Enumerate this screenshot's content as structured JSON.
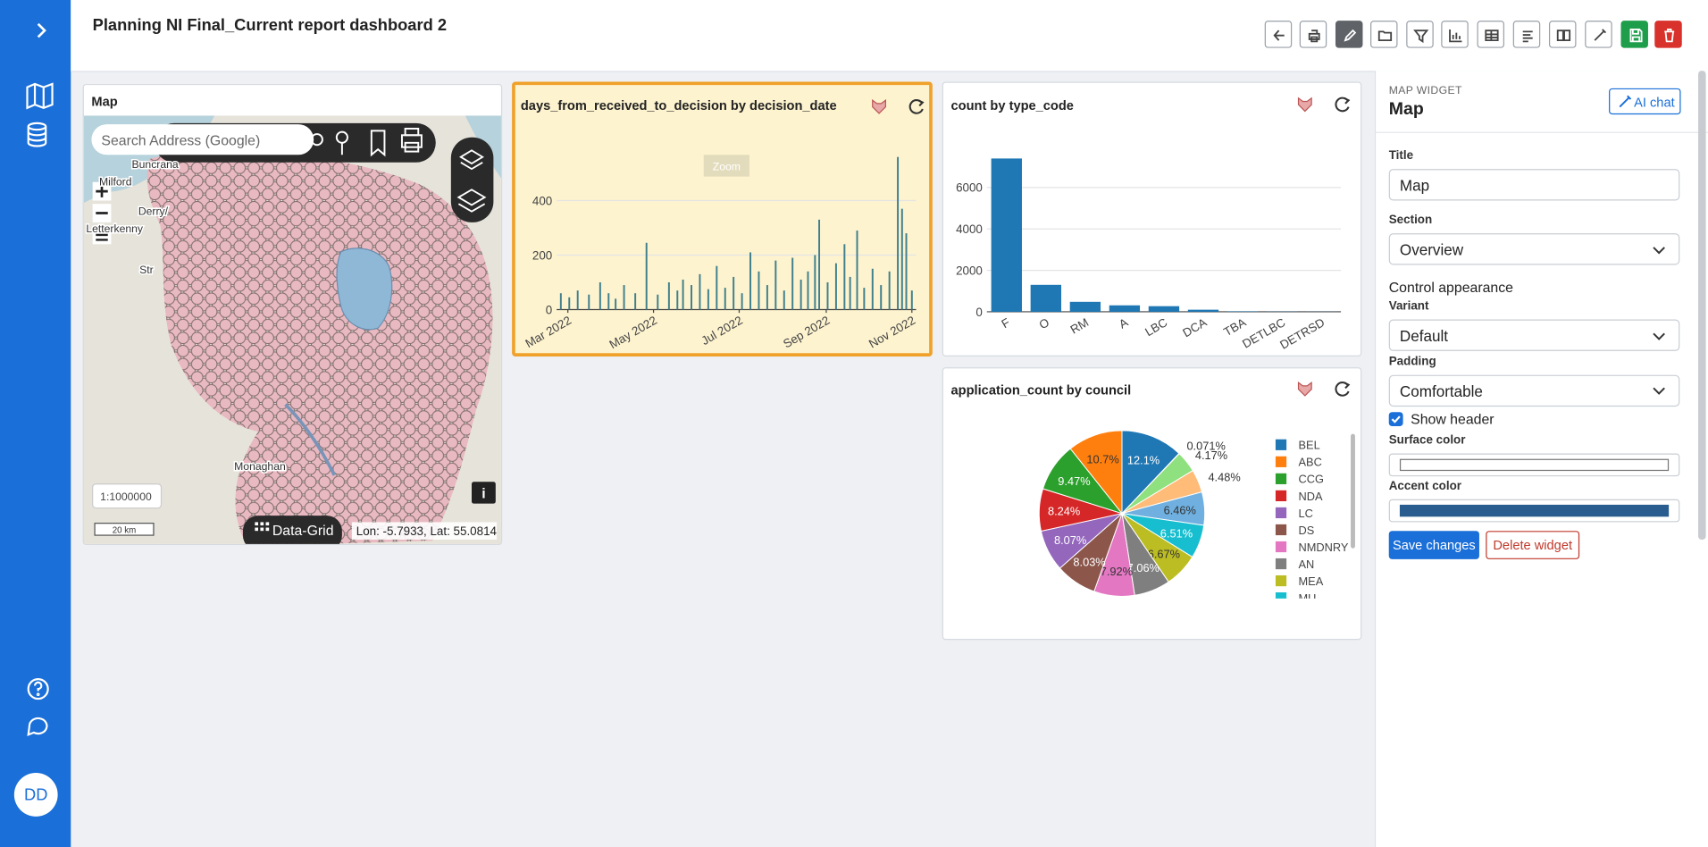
{
  "sidebar": {
    "avatar": "DD"
  },
  "header": {
    "title": "Planning NI Final_Current report dashboard 2"
  },
  "map_widget": {
    "title": "Map",
    "search_placeholder": "Search Address (Google)",
    "places": [
      "Buncrana",
      "Milford",
      "Derry/",
      "Letterkenny",
      "Str",
      "Monaghan"
    ],
    "scale": "1:1000000",
    "scale_bar": "20 km",
    "data_grid": "Data-Grid",
    "coordinates": "Lon: -5.7933, Lat: 55.0814"
  },
  "chart_data": [
    {
      "type": "bar",
      "title": "days_from_received_to_decision by decision_date",
      "modebar_tooltip": "Zoom",
      "color": "#3f7f8c",
      "grid": true,
      "x": [
        "2022-02-24",
        "2022-03-02",
        "2022-03-08",
        "2022-03-16",
        "2022-03-24",
        "2022-03-30",
        "2022-04-04",
        "2022-04-10",
        "2022-04-18",
        "2022-04-26",
        "2022-05-04",
        "2022-05-12",
        "2022-05-18",
        "2022-05-22",
        "2022-05-28",
        "2022-06-03",
        "2022-06-09",
        "2022-06-15",
        "2022-06-21",
        "2022-06-27",
        "2022-07-03",
        "2022-07-09",
        "2022-07-15",
        "2022-07-21",
        "2022-07-27",
        "2022-08-02",
        "2022-08-08",
        "2022-08-14",
        "2022-08-19",
        "2022-08-24",
        "2022-08-27",
        "2022-09-02",
        "2022-09-08",
        "2022-09-14",
        "2022-09-18",
        "2022-09-23",
        "2022-09-28",
        "2022-10-04",
        "2022-10-10",
        "2022-10-16",
        "2022-10-22",
        "2022-10-25",
        "2022-10-28",
        "2022-11-01"
      ],
      "values": [
        60,
        45,
        70,
        55,
        100,
        60,
        40,
        90,
        60,
        245,
        55,
        100,
        70,
        110,
        90,
        130,
        75,
        160,
        80,
        120,
        60,
        210,
        140,
        90,
        180,
        70,
        190,
        110,
        140,
        200,
        330,
        100,
        170,
        240,
        120,
        290,
        80,
        150,
        90,
        140,
        560,
        370,
        280,
        70
      ],
      "xlim": [
        "2022-02-21",
        "2022-11-04"
      ],
      "xticks": [
        {
          "value": "2022-03-01",
          "label": "Mar 2022"
        },
        {
          "value": "2022-05-01",
          "label": "May 2022"
        },
        {
          "value": "2022-07-01",
          "label": "Jul 2022"
        },
        {
          "value": "2022-09-01",
          "label": "Sep 2022"
        },
        {
          "value": "2022-11-01",
          "label": "Nov 2022"
        }
      ],
      "ylim": [
        0,
        650
      ],
      "yticks": [
        0,
        200,
        400
      ]
    },
    {
      "type": "bar",
      "title": "count by type_code",
      "color": "#1f77b4",
      "grid": true,
      "categories": [
        "F",
        "O",
        "RM",
        "A",
        "LBC",
        "DCA",
        "TBA",
        "DETLBC",
        "DETRSD"
      ],
      "values": [
        7400,
        1300,
        480,
        310,
        270,
        100,
        20,
        10,
        5
      ],
      "ylim": [
        0,
        8500
      ],
      "yticks": [
        0,
        2000,
        4000,
        6000
      ]
    },
    {
      "type": "pie",
      "title": "application_count by council",
      "categories": [
        "BEL",
        "ABC",
        "CCG",
        "NDA",
        "LC",
        "DS",
        "NMDNRY",
        "AN",
        "MEA",
        "MU",
        null,
        null,
        null,
        null
      ],
      "values": [
        12.1,
        10.7,
        9.47,
        8.24,
        8.07,
        8.03,
        7.92,
        7.06,
        6.67,
        6.51,
        6.46,
        4.48,
        4.17,
        0.071
      ],
      "value_labels": [
        "12.1%",
        "10.7%",
        "9.47%",
        "8.24%",
        "8.07%",
        "8.03%",
        "7.92%",
        "7.06%",
        "6.67%",
        "6.51%",
        "6.46%",
        "4.48%",
        "4.17%",
        "0.071%"
      ],
      "colors": [
        "#1f77b4",
        "#ff7f0e",
        "#2ca02c",
        "#d62728",
        "#9467bd",
        "#8c564b",
        "#e377c2",
        "#7f7f7f",
        "#bcbd22",
        "#17becf",
        "#6fb0e0",
        "#ffbb78",
        "#8fe07f",
        "#ff9896"
      ]
    }
  ],
  "panel": {
    "kicker": "MAP WIDGET",
    "title": "Map",
    "ai_chat": "AI chat",
    "title_label": "Title",
    "title_value": "Map",
    "section_label": "Section",
    "section_value": "Overview",
    "appearance": "Control appearance",
    "variant_label": "Variant",
    "variant_value": "Default",
    "padding_label": "Padding",
    "padding_value": "Comfortable",
    "show_header": "Show header",
    "surface_label": "Surface color",
    "accent_label": "Accent color",
    "save": "Save changes",
    "delete": "Delete widget"
  }
}
